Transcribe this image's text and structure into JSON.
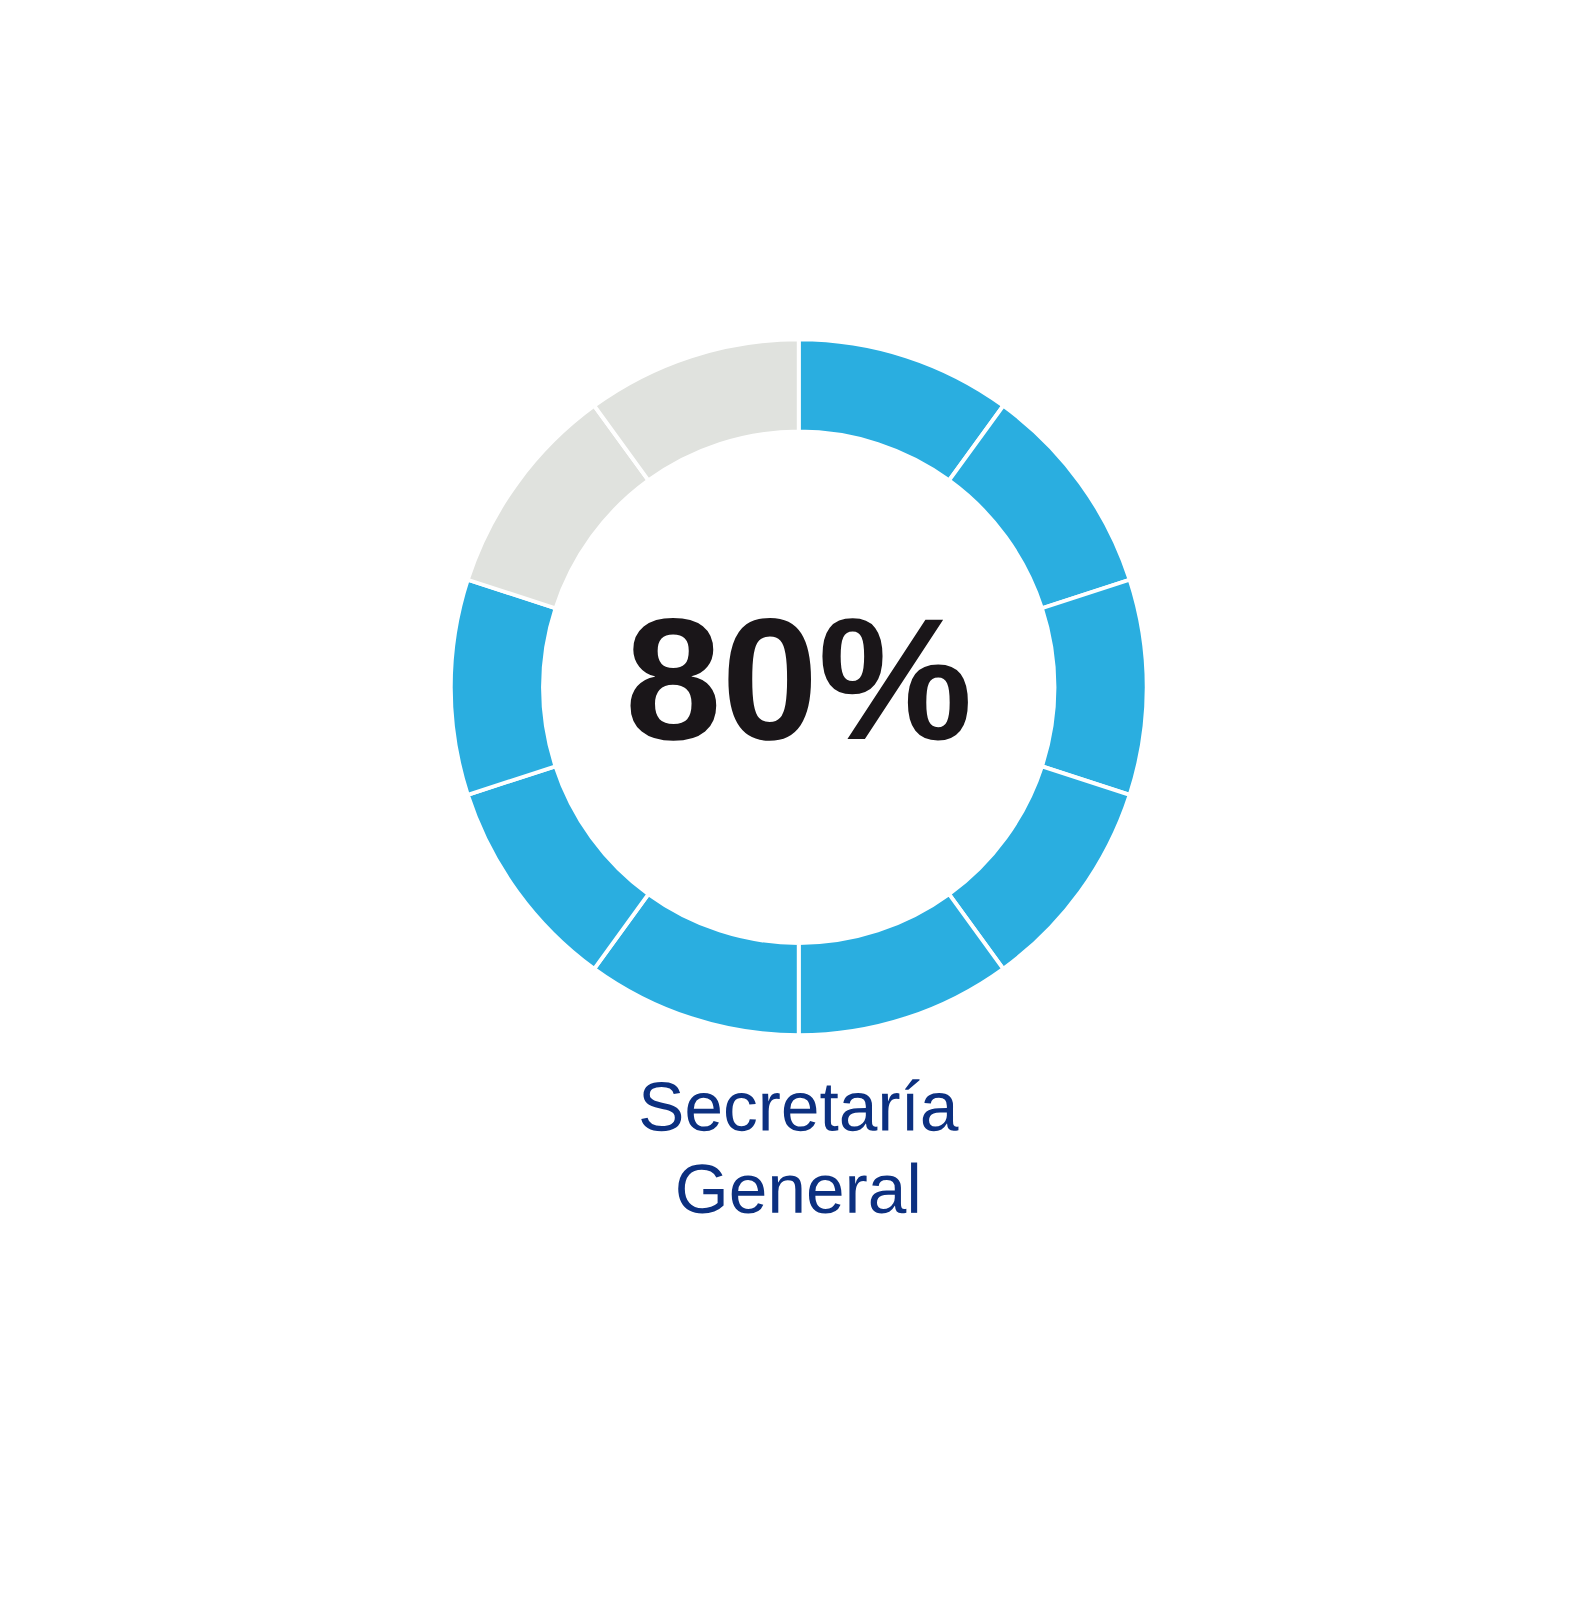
{
  "chart_data": {
    "type": "donut",
    "categories": [
      null,
      null,
      null,
      null,
      null,
      null,
      null,
      null,
      null,
      null
    ],
    "values": [
      10,
      10,
      10,
      10,
      10,
      10,
      10,
      10,
      10,
      10
    ],
    "colors": [
      "#2aaee0",
      "#2aaee0",
      "#2aaee0",
      "#2aaee0",
      "#2aaee0",
      "#2aaee0",
      "#2aaee0",
      "#2aaee0",
      "#e0e2de",
      "#e0e2de"
    ],
    "annotations": [
      "80%"
    ],
    "title": "Secretaría\nGeneral"
  }
}
